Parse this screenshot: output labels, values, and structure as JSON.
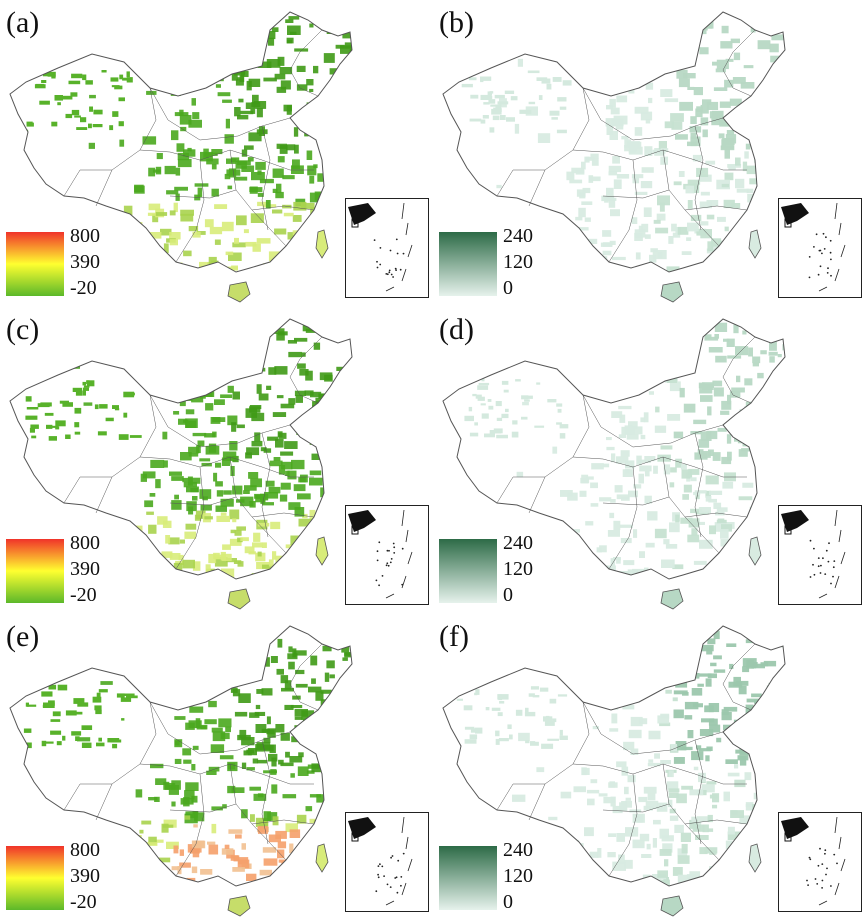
{
  "panels": [
    {
      "id": "a",
      "label": "(a)",
      "kind": "diverging",
      "legend": [
        "800",
        "390",
        "-20"
      ]
    },
    {
      "id": "b",
      "label": "(b)",
      "kind": "green",
      "legend": [
        "240",
        "120",
        "0"
      ]
    },
    {
      "id": "c",
      "label": "(c)",
      "kind": "diverging",
      "legend": [
        "800",
        "390",
        "-20"
      ]
    },
    {
      "id": "d",
      "label": "(d)",
      "kind": "green",
      "legend": [
        "240",
        "120",
        "0"
      ]
    },
    {
      "id": "e",
      "label": "(e)",
      "kind": "diverging",
      "legend": [
        "800",
        "390",
        "-20"
      ]
    },
    {
      "id": "f",
      "label": "(f)",
      "kind": "green",
      "legend": [
        "240",
        "120",
        "0"
      ]
    }
  ],
  "colors": {
    "diverging_top": "#f0332a",
    "diverging_mid": "#ffff30",
    "diverging_bottom": "#5cb82a",
    "green_top": "#2d6b47",
    "green_bottom": "#e6f2ec",
    "border": "#555555"
  }
}
